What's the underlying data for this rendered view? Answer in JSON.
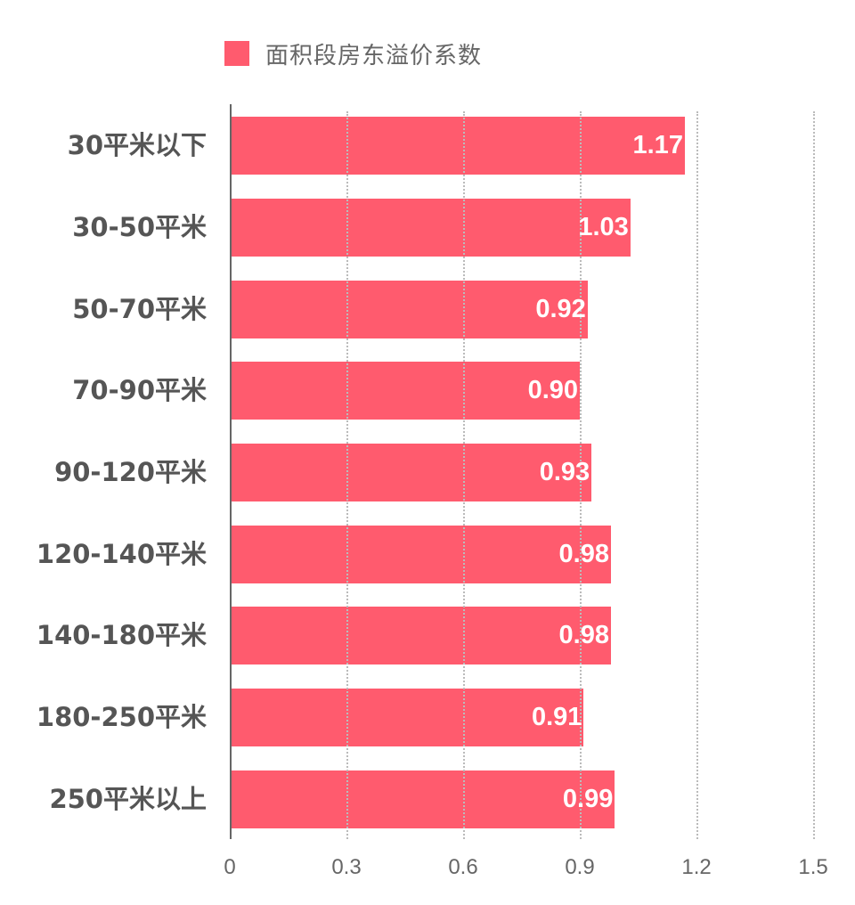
{
  "chart_data": {
    "type": "bar",
    "orientation": "horizontal",
    "title": "",
    "legend": [
      {
        "name": "面积段房东溢价系数",
        "color": "#ff5b6e"
      }
    ],
    "legend_position": "top",
    "categories": [
      "30平米以下",
      "30-50平米",
      "50-70平米",
      "70-90平米",
      "90-120平米",
      "120-140平米",
      "140-180平米",
      "180-250平米",
      "250平米以上"
    ],
    "series": [
      {
        "name": "面积段房东溢价系数",
        "values": [
          1.17,
          1.03,
          0.92,
          0.9,
          0.93,
          0.98,
          0.98,
          0.91,
          0.99
        ]
      }
    ],
    "value_labels": [
      "1.17",
      "1.03",
      "0.92",
      "0.90",
      "0.93",
      "0.98",
      "0.98",
      "0.91",
      "0.99"
    ],
    "xlabel": "",
    "ylabel": "",
    "xlim": [
      0,
      1.5
    ],
    "x_ticks": [
      "0",
      "0.3",
      "0.6",
      "0.9",
      "1.2",
      "1.5"
    ],
    "grid": "vertical dotted"
  },
  "legend": {
    "label": "面积段房东溢价系数"
  }
}
